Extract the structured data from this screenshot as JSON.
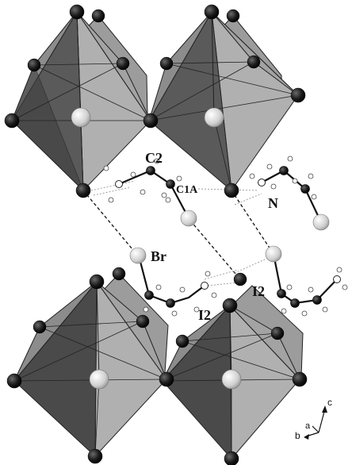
{
  "labels": {
    "c2": "C2",
    "c1a": "C1A",
    "n": "N",
    "br": "Br",
    "i2_right": "I2",
    "i2_left": "I2"
  },
  "axes": {
    "c": "c",
    "b": "b",
    "a": "a"
  },
  "colors": {
    "octahedron_light": "#a3a3a3",
    "octahedron_mid": "#8a8a8a",
    "octahedron_dark": "#4a4a4a",
    "atom_dark": "#1a1a1a",
    "atom_light": "#d9d9d9",
    "bond": "#111111",
    "hydrogen_bond": "#9a9a9a"
  }
}
